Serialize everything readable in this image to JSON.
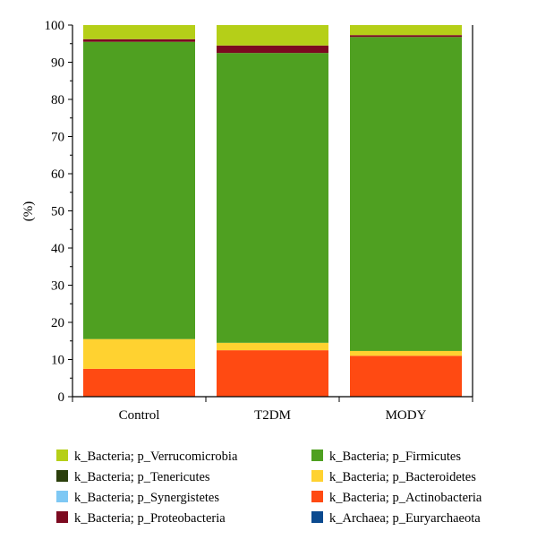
{
  "chart_data": {
    "type": "bar",
    "stacked": true,
    "title": "",
    "xlabel": "",
    "ylabel": "(%)",
    "ylim": [
      0,
      100
    ],
    "yticks": [
      0,
      10,
      20,
      30,
      40,
      50,
      60,
      70,
      80,
      90,
      100
    ],
    "categories": [
      "Control",
      "T2DM",
      "MODY"
    ],
    "series": [
      {
        "name": "k_Archaea; p_Euryarchaeota",
        "color": "#0b4a8f",
        "values": [
          0,
          0,
          0
        ]
      },
      {
        "name": "k_Bacteria; p_Actinobacteria",
        "color": "#ff4a12",
        "values": [
          7.5,
          12.5,
          11
        ]
      },
      {
        "name": "k_Bacteria; p_Bacteroidetes",
        "color": "#ffd230",
        "values": [
          8,
          2,
          1.3
        ]
      },
      {
        "name": "k_Bacteria; p_Firmicutes",
        "color": "#4fa021",
        "values": [
          80,
          78,
          84.5
        ]
      },
      {
        "name": "k_Bacteria; p_Synergistetes",
        "color": "#7ec8f4",
        "values": [
          0,
          0,
          0
        ]
      },
      {
        "name": "k_Bacteria; p_Proteobacteria",
        "color": "#7c0a20",
        "values": [
          0.7,
          2,
          0.5
        ]
      },
      {
        "name": "k_Bacteria; p_Tenericutes",
        "color": "#2b3f0c",
        "values": [
          0,
          0,
          0
        ]
      },
      {
        "name": "k_Bacteria; p_Verrucomicrobia",
        "color": "#b5cf18",
        "values": [
          3.8,
          5.5,
          2.7
        ]
      }
    ],
    "legend": {
      "placement": "bottom",
      "columns": [
        [
          "k_Bacteria; p_Verrucomicrobia",
          "k_Bacteria; p_Tenericutes",
          "k_Bacteria; p_Synergistetes",
          "k_Bacteria; p_Proteobacteria"
        ],
        [
          "k_Bacteria; p_Firmicutes",
          "k_Bacteria; p_Bacteroidetes",
          "k_Bacteria; p_Actinobacteria",
          "k_Archaea; p_Euryarchaeota"
        ]
      ]
    }
  }
}
